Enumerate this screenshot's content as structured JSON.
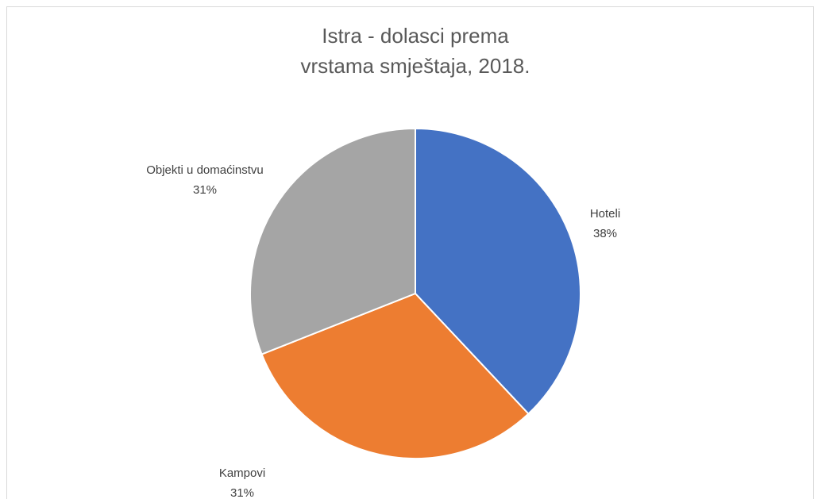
{
  "chart_data": {
    "type": "pie",
    "title": [
      "Istra - dolasci prema",
      "vrstama smještaja, 2018."
    ],
    "categories": [
      "Hoteli",
      "Kampovi",
      "Objekti u domaćinstvu"
    ],
    "values": [
      38,
      31,
      31
    ],
    "value_labels": [
      "38%",
      "31%",
      "31%"
    ],
    "colors": [
      "#4472c4",
      "#ed7d31",
      "#a5a5a5"
    ]
  }
}
